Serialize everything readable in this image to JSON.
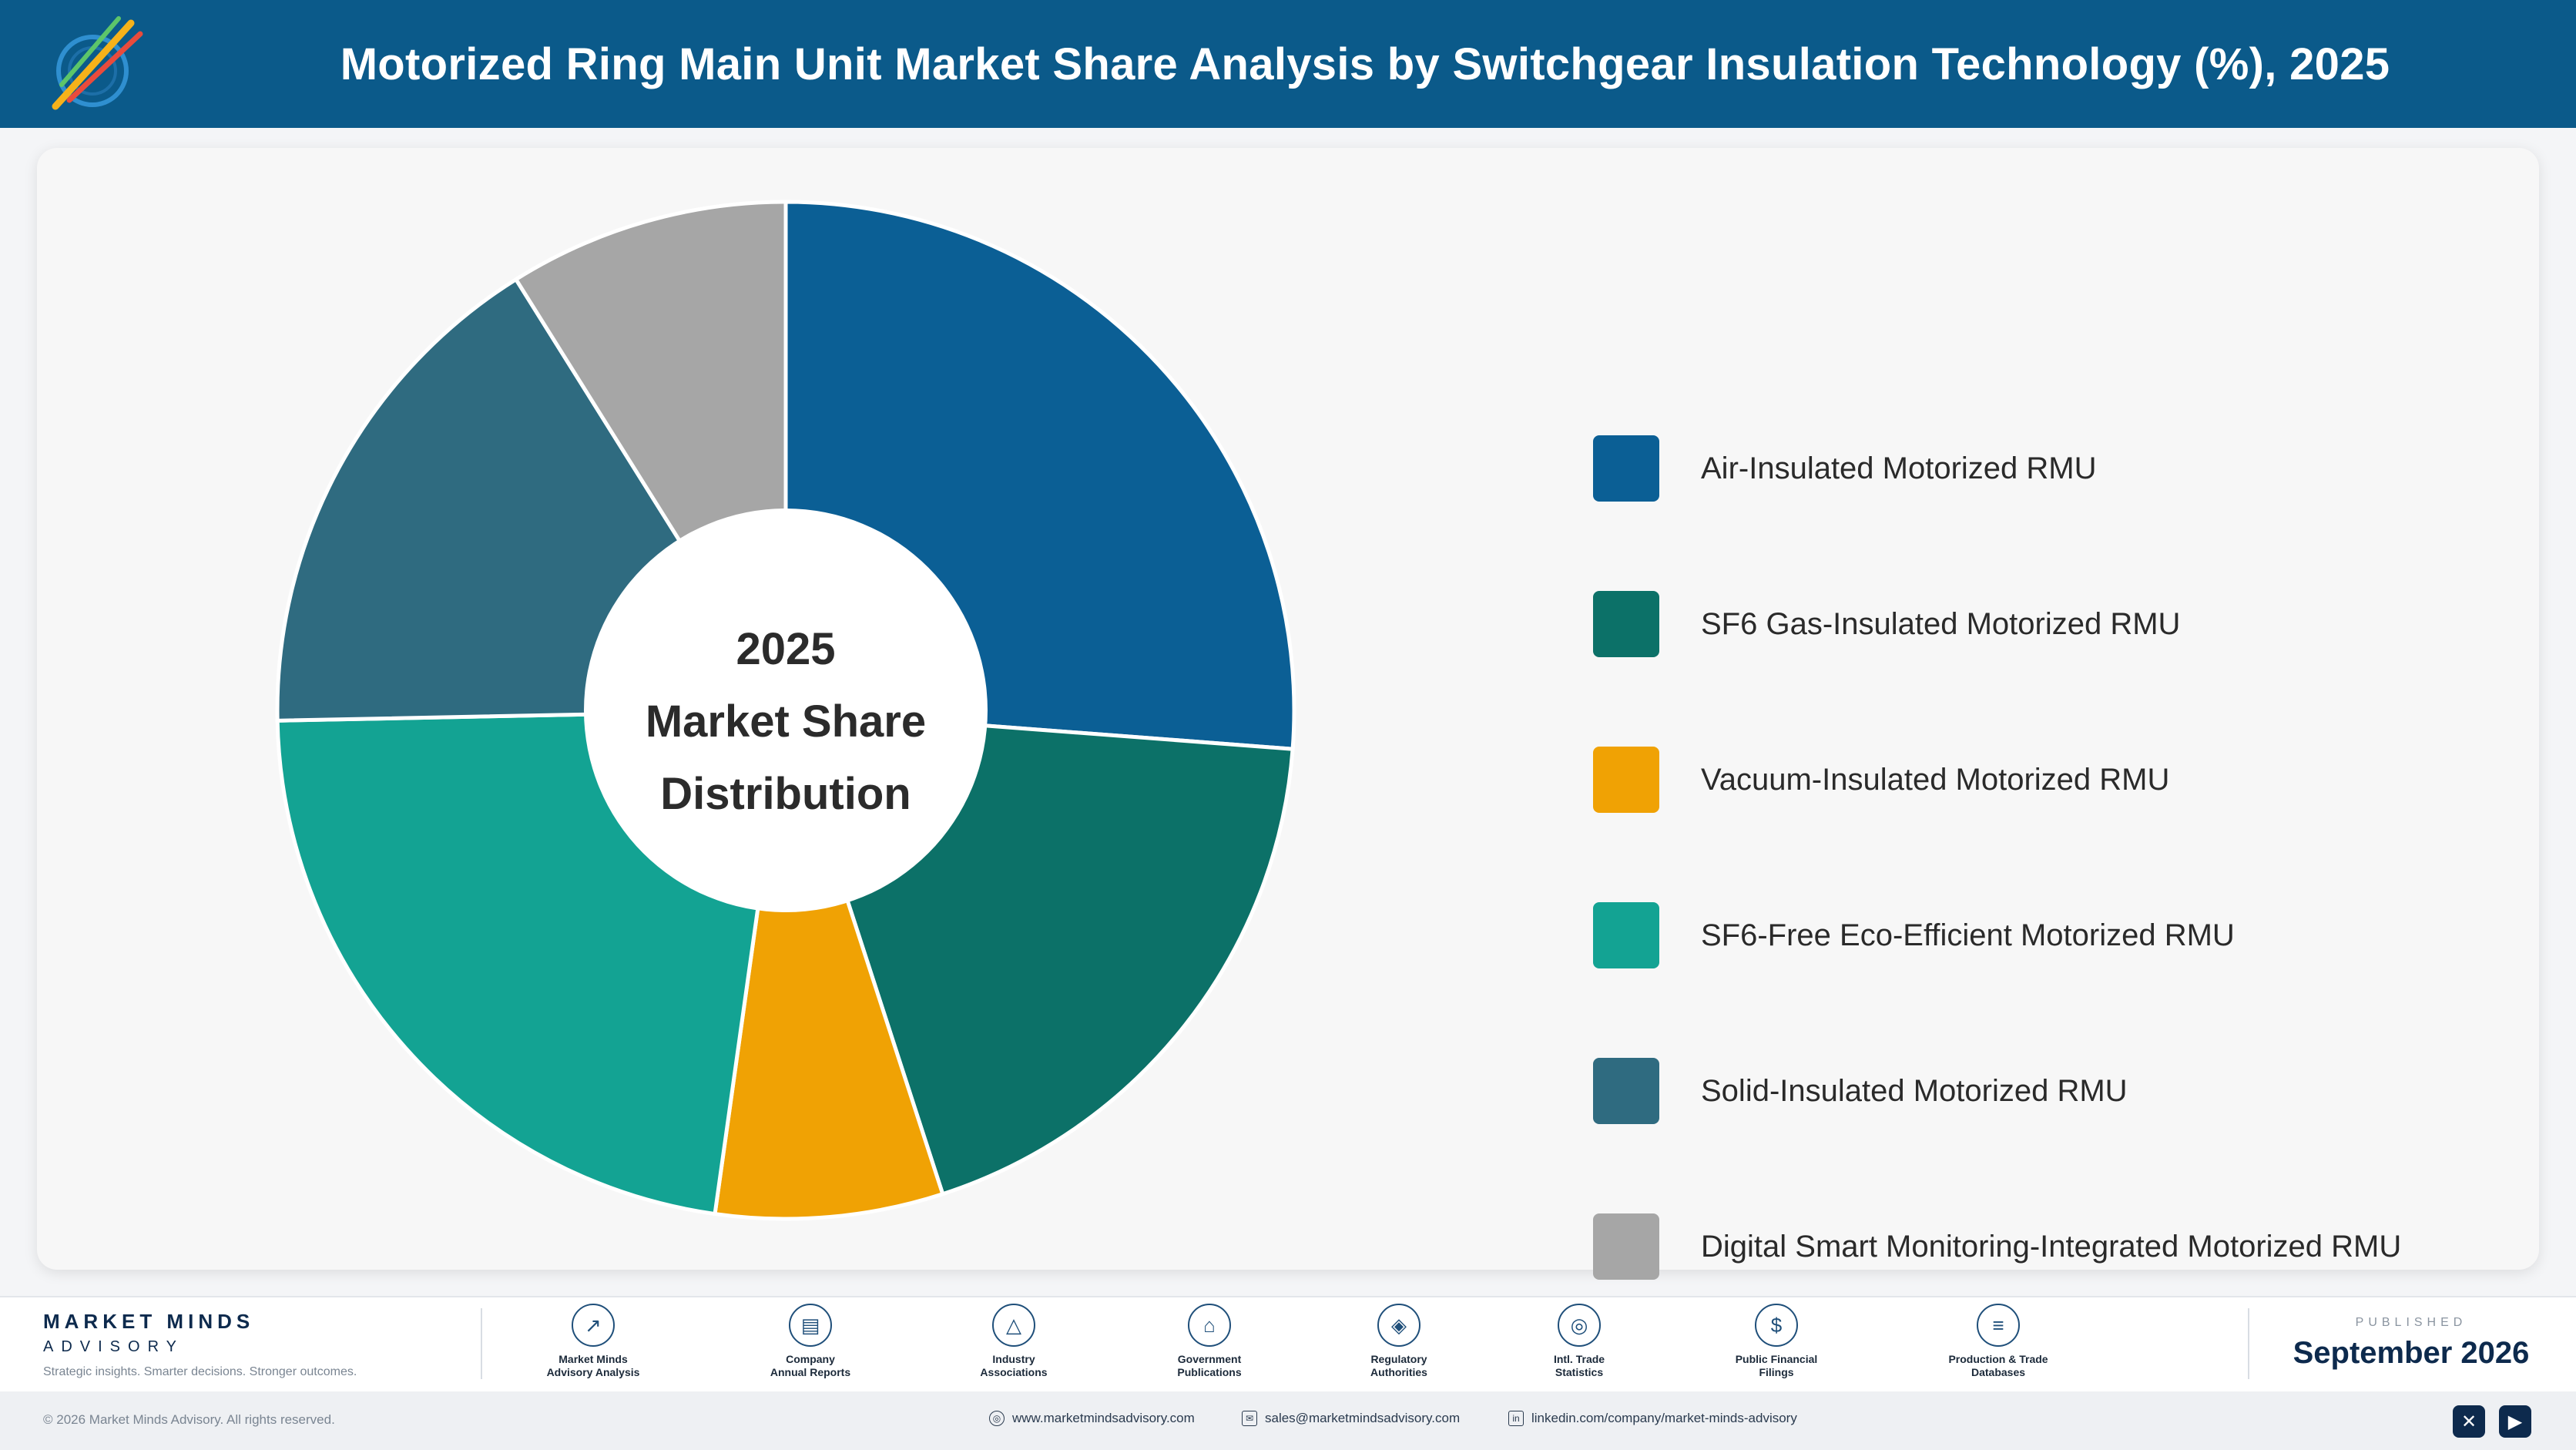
{
  "header": {
    "title": "Motorized Ring Main Unit Market Share Analysis by Switchgear Insulation Technology (%), 2025"
  },
  "chart_data": {
    "type": "pie",
    "variant": "donut",
    "title": "Motorized Ring Main Unit Market Share Analysis by Switchgear Insulation Technology (%), 2025",
    "center_label": [
      "2025",
      "Market Share",
      "Distribution"
    ],
    "legend_position": "right",
    "unit": "%",
    "categories": [
      "Air-Insulated Motorized RMU",
      "SF6 Gas-Insulated Motorized RMU",
      "Vacuum-Insulated Motorized RMU",
      "SF6-Free Eco-Efficient Motorized RMU",
      "Solid-Insulated Motorized RMU",
      "Digital Smart Monitoring-Integrated Motorized RMU"
    ],
    "values": [
      26.5,
      19.0,
      7.3,
      22.7,
      16.6,
      9.0
    ],
    "colors": [
      "#0b5f95",
      "#0c7168",
      "#f0a204",
      "#13a393",
      "#2f6b80",
      "#a6a6a6"
    ]
  },
  "footer": {
    "brand_name": "MARKET MINDS",
    "brand_sub": "ADVISORY",
    "tagline": "Strategic insights. Smarter decisions. Stronger outcomes.",
    "sources": [
      {
        "icon": "chart-line-icon",
        "glyph": "↗",
        "line1": "Market Minds",
        "line2": "Advisory Analysis"
      },
      {
        "icon": "document-icon",
        "glyph": "▤",
        "line1": "Company",
        "line2": "Annual Reports"
      },
      {
        "icon": "network-icon",
        "glyph": "△",
        "line1": "Industry",
        "line2": "Associations"
      },
      {
        "icon": "government-building-icon",
        "glyph": "⌂",
        "line1": "Government",
        "line2": "Publications"
      },
      {
        "icon": "shield-icon",
        "glyph": "◈",
        "line1": "Regulatory",
        "line2": "Authorities"
      },
      {
        "icon": "globe-icon",
        "glyph": "◎",
        "line1": "Intl. Trade",
        "line2": "Statistics"
      },
      {
        "icon": "currency-icon",
        "glyph": "$",
        "line1": "Public Financial",
        "line2": "Filings"
      },
      {
        "icon": "database-icon",
        "glyph": "≡",
        "line1": "Production & Trade",
        "line2": "Databases"
      }
    ],
    "published_label": "PUBLISHED",
    "published_date": "September 2026",
    "copyright": "© 2026 Market Minds Advisory. All rights reserved.",
    "website": "www.marketmindsadvisory.com",
    "email": "sales@marketmindsadvisory.com",
    "linkedin": "linkedin.com/company/market-minds-advisory"
  }
}
